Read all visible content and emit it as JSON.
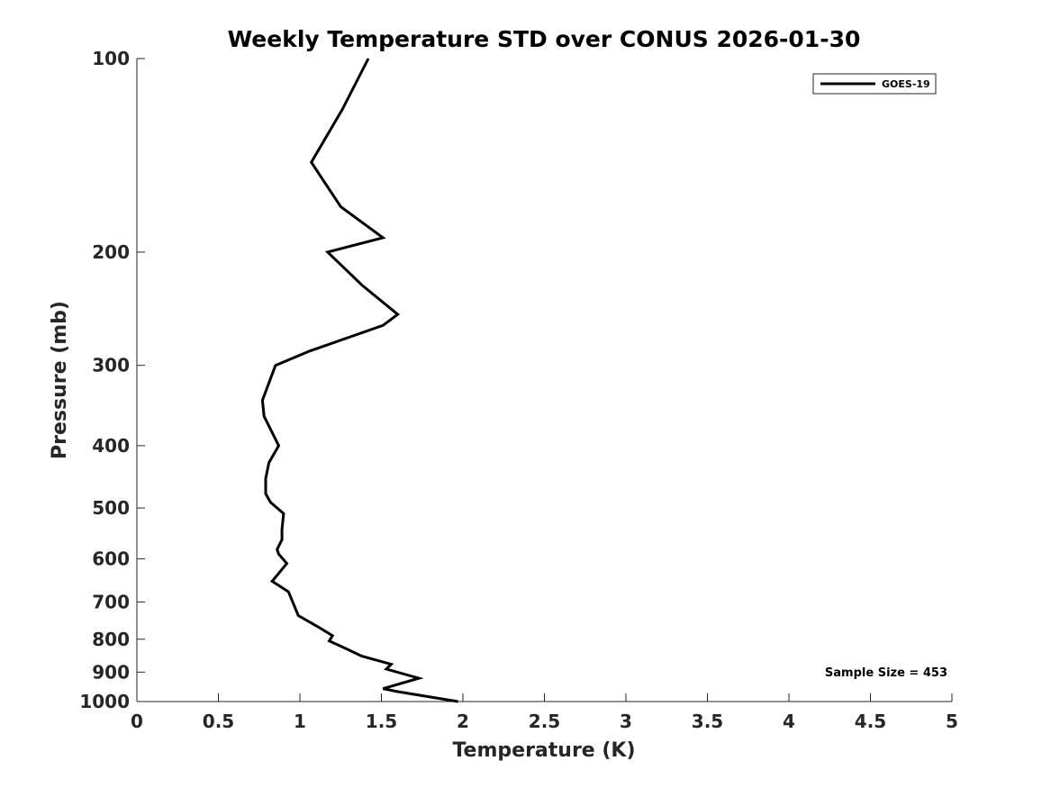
{
  "chart_data": {
    "type": "line",
    "title": "Weekly Temperature STD over CONUS 2026-01-30",
    "xlabel": "Temperature (K)",
    "ylabel": "Pressure (mb)",
    "xlim": [
      0,
      5
    ],
    "ylim": [
      1000,
      100
    ],
    "y_scale": "log",
    "grid": false,
    "legend_position": "top-right",
    "x_ticks": [
      0,
      0.5,
      1,
      1.5,
      2,
      2.5,
      3,
      3.5,
      4,
      4.5,
      5
    ],
    "x_tick_labels": [
      "0",
      "0.5",
      "1",
      "1.5",
      "2",
      "2.5",
      "3",
      "3.5",
      "4",
      "4.5",
      "5"
    ],
    "y_ticks": [
      100,
      200,
      300,
      400,
      500,
      600,
      700,
      800,
      900,
      1000
    ],
    "y_tick_labels": [
      "100",
      "200",
      "300",
      "400",
      "500",
      "600",
      "700",
      "800",
      "900",
      "1000"
    ],
    "series": [
      {
        "name": "GOES-19",
        "color": "#000000",
        "x": [
          1.42,
          1.26,
          1.07,
          1.25,
          1.51,
          1.17,
          1.38,
          1.6,
          1.51,
          1.06,
          0.85,
          0.77,
          0.78,
          0.87,
          0.81,
          0.79,
          0.79,
          0.82,
          0.9,
          0.89,
          0.89,
          0.86,
          0.87,
          0.92,
          0.83,
          0.93,
          0.99,
          1.11,
          1.2,
          1.18,
          1.25,
          1.38,
          1.56,
          1.53,
          1.73,
          1.51,
          1.6,
          1.97
        ],
        "y": [
          100,
          120,
          145,
          170,
          190,
          200,
          225,
          250,
          260,
          285,
          300,
          340,
          360,
          400,
          425,
          450,
          475,
          490,
          510,
          540,
          560,
          580,
          590,
          610,
          650,
          675,
          735,
          765,
          790,
          805,
          820,
          850,
          875,
          890,
          920,
          955,
          965,
          1000
        ]
      }
    ],
    "annotations": [
      {
        "text": "Sample Size = 453"
      }
    ]
  }
}
